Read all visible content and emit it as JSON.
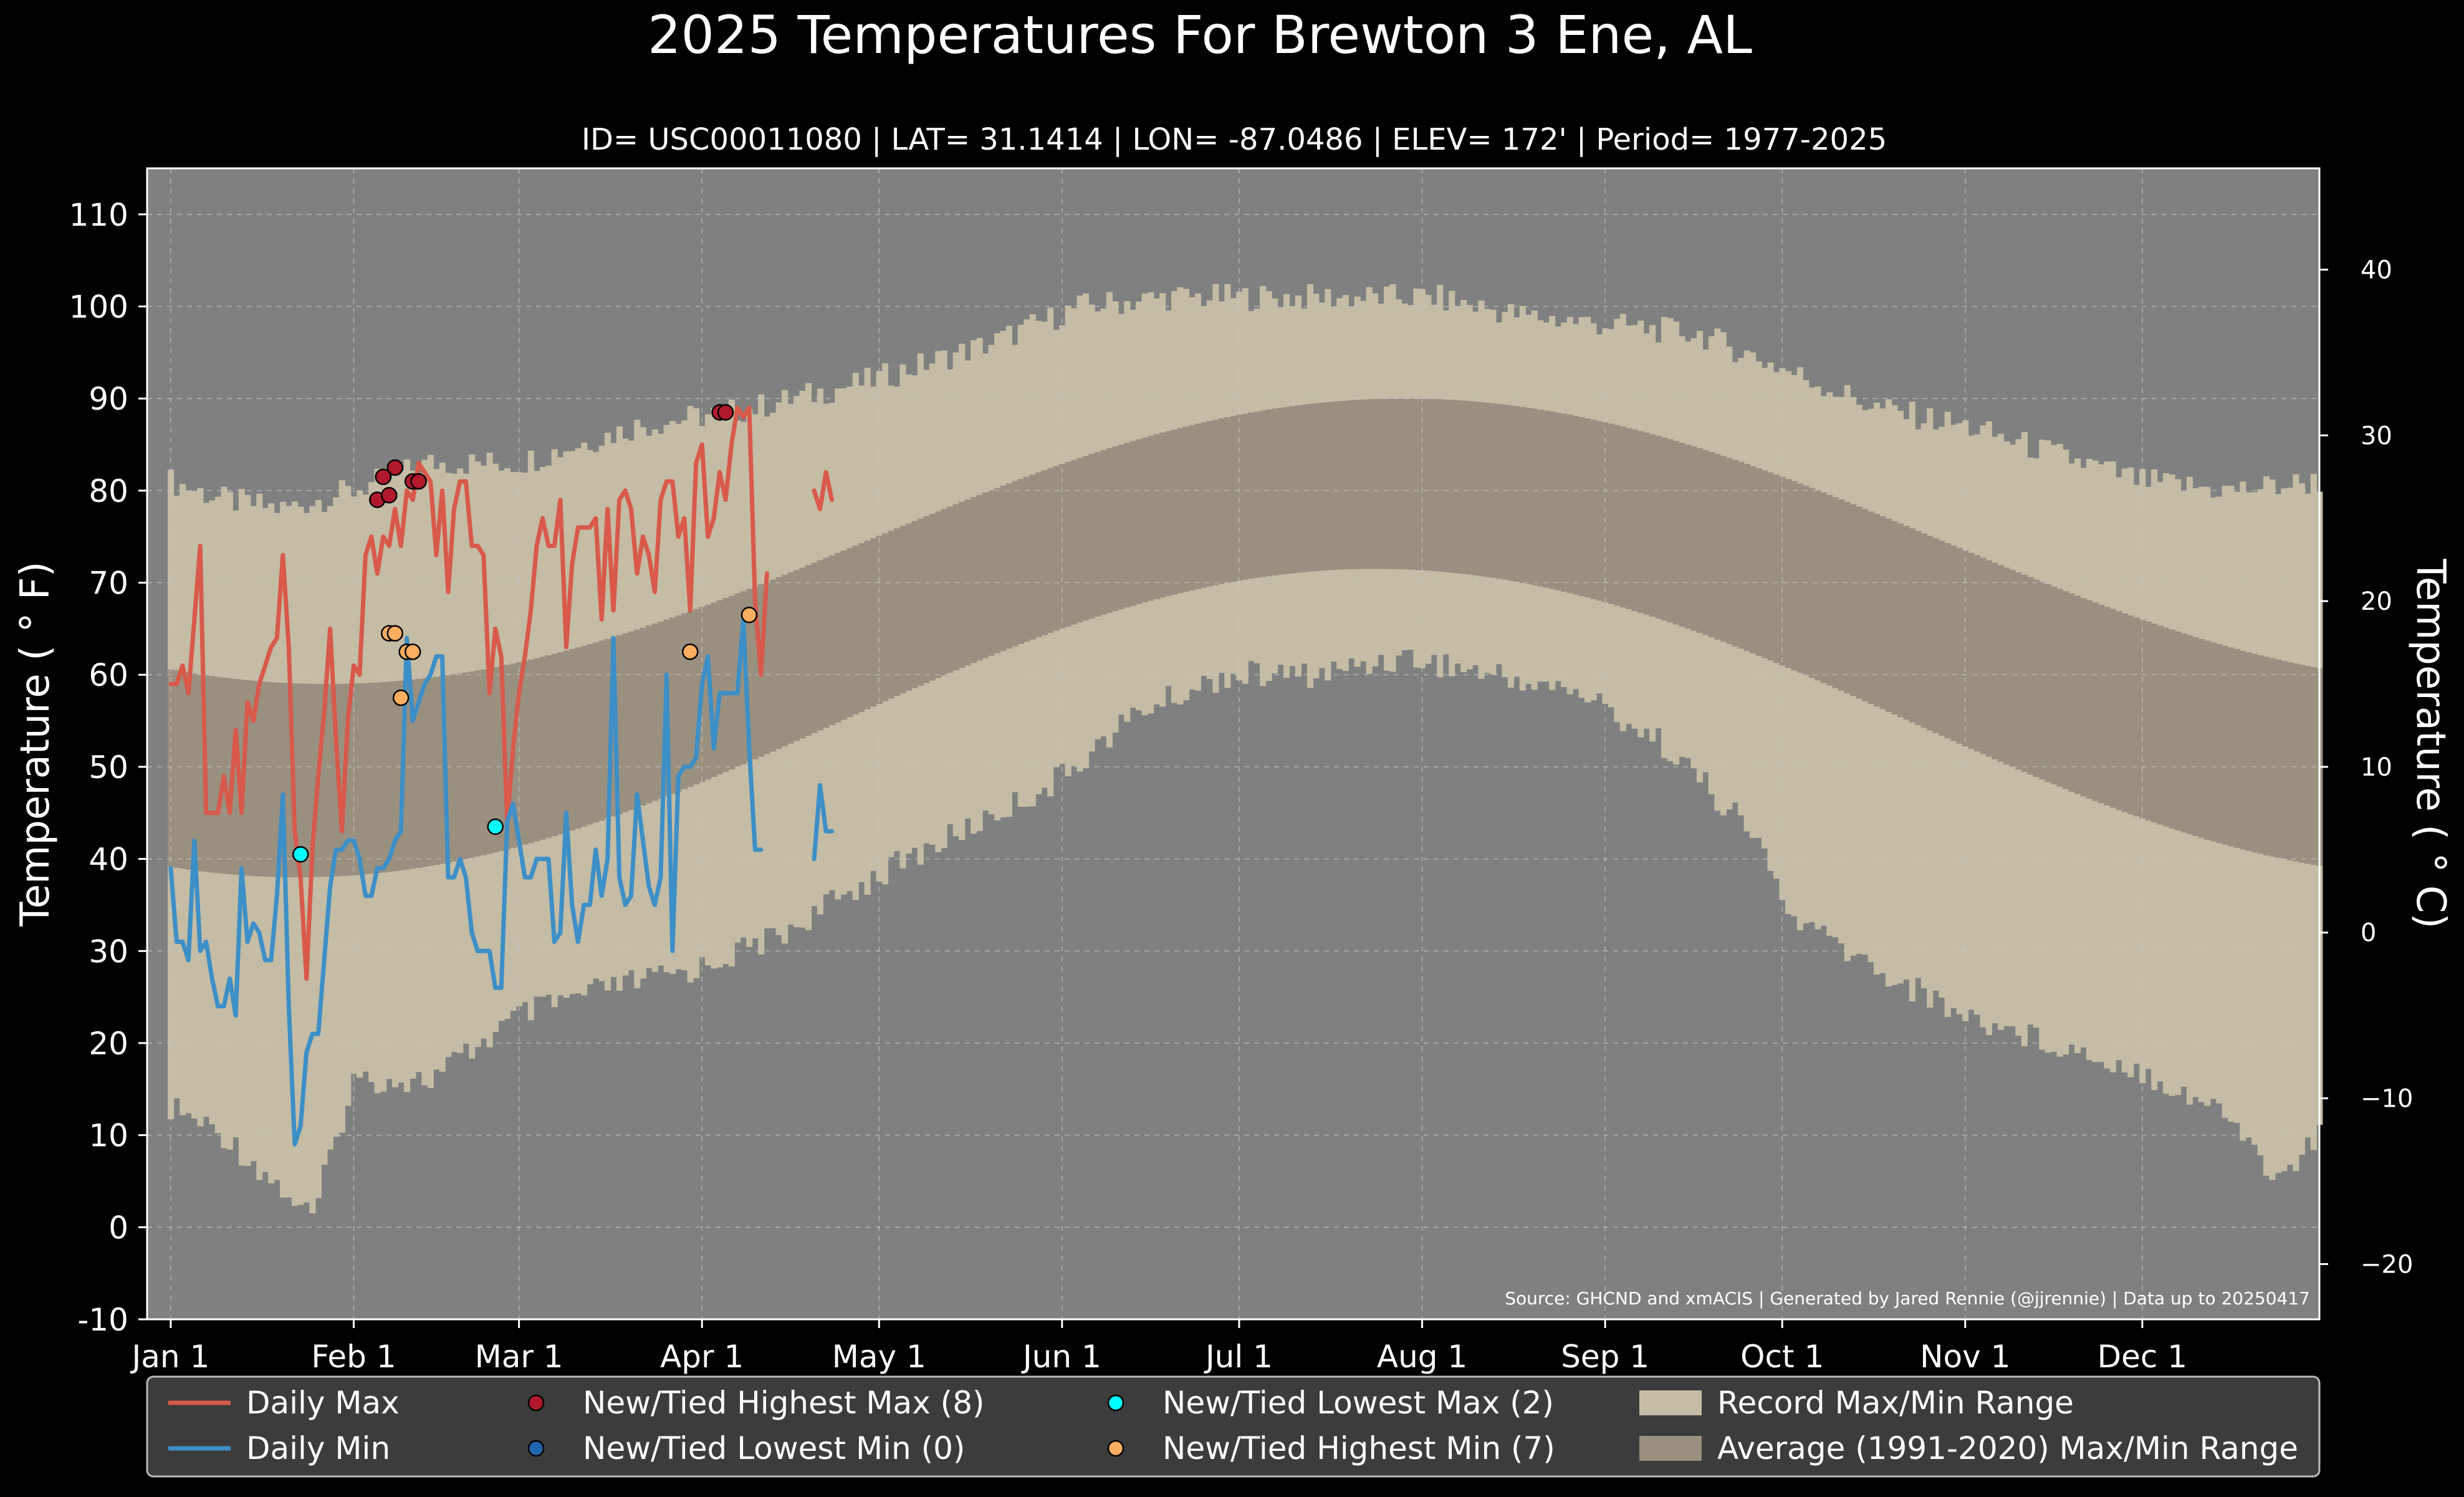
{
  "title": "2025 Temperatures For Brewton 3 Ene, AL",
  "subtitle": "ID= USC00011080 | LAT= 31.1414 | LON= -87.0486 | ELEV= 172' | Period= 1977-2025",
  "source_note": "Source: GHCND and xmACIS | Generated by Jared Rennie (@jjrennie) | Data up to 20250417",
  "colors": {
    "background": "#000000",
    "plot_bg": "#808080",
    "record_band": "#c4bca4",
    "normal_band": "#9a9080",
    "daily_max": "#d9594a",
    "daily_min": "#3d8fc7",
    "highest_max_marker": "#b2182b",
    "lowest_min_marker": "#2166ac",
    "lowest_max_marker": "#00ffff",
    "highest_min_marker": "#fdae61",
    "legend_bg": "#3c3c3c"
  },
  "chart_data": {
    "type": "line",
    "xlabel": "",
    "ylabel": "Temperature ( ° F)",
    "ylabel_right": "Temperature ( ° C)",
    "ylim": [
      -10,
      115
    ],
    "yticks": [
      -10,
      0,
      10,
      20,
      30,
      40,
      50,
      60,
      70,
      80,
      90,
      100,
      110
    ],
    "yticks_right_c": [
      -20,
      -10,
      0,
      10,
      20,
      30,
      40
    ],
    "xlim_day": [
      -3,
      365
    ],
    "xticks": [
      {
        "label": "Jan 1",
        "day": 1
      },
      {
        "label": "Feb 1",
        "day": 32
      },
      {
        "label": "Mar 1",
        "day": 60
      },
      {
        "label": "Apr 1",
        "day": 91
      },
      {
        "label": "May 1",
        "day": 121
      },
      {
        "label": "Jun 1",
        "day": 152
      },
      {
        "label": "Jul 1",
        "day": 182
      },
      {
        "label": "Aug 1",
        "day": 213
      },
      {
        "label": "Sep 1",
        "day": 244
      },
      {
        "label": "Oct 1",
        "day": 274
      },
      {
        "label": "Nov 1",
        "day": 305
      },
      {
        "label": "Dec 1",
        "day": 335
      }
    ],
    "grid": true,
    "normals": {
      "max_min": 59,
      "max_max": 90,
      "max_peak_day": 210,
      "min_min": 38,
      "min_max": 71.5,
      "min_peak_day": 205
    },
    "record_max_anchors": [
      [
        1,
        81
      ],
      [
        10,
        79
      ],
      [
        20,
        78
      ],
      [
        32,
        80
      ],
      [
        45,
        83
      ],
      [
        60,
        83
      ],
      [
        80,
        87
      ],
      [
        100,
        89
      ],
      [
        120,
        92
      ],
      [
        140,
        96
      ],
      [
        155,
        100
      ],
      [
        170,
        101
      ],
      [
        185,
        101
      ],
      [
        200,
        101
      ],
      [
        215,
        101
      ],
      [
        230,
        99
      ],
      [
        245,
        98
      ],
      [
        260,
        97
      ],
      [
        275,
        93
      ],
      [
        290,
        89
      ],
      [
        305,
        87
      ],
      [
        320,
        84
      ],
      [
        335,
        81
      ],
      [
        350,
        80
      ],
      [
        365,
        81
      ]
    ],
    "record_min_anchors": [
      [
        1,
        13
      ],
      [
        10,
        10
      ],
      [
        20,
        4
      ],
      [
        25,
        1
      ],
      [
        32,
        16
      ],
      [
        45,
        16
      ],
      [
        60,
        23
      ],
      [
        75,
        26
      ],
      [
        90,
        28
      ],
      [
        105,
        32
      ],
      [
        120,
        38
      ],
      [
        135,
        43
      ],
      [
        150,
        48
      ],
      [
        165,
        56
      ],
      [
        180,
        60
      ],
      [
        195,
        60
      ],
      [
        210,
        62
      ],
      [
        225,
        60
      ],
      [
        240,
        58
      ],
      [
        255,
        52
      ],
      [
        270,
        42
      ],
      [
        275,
        34
      ],
      [
        290,
        28
      ],
      [
        305,
        23
      ],
      [
        320,
        20
      ],
      [
        335,
        17
      ],
      [
        350,
        12
      ],
      [
        358,
        5
      ],
      [
        365,
        10
      ]
    ],
    "series": [
      {
        "name": "Daily Max",
        "start_day": 1,
        "values": [
          59,
          59,
          61,
          58,
          66,
          74,
          45,
          45,
          45,
          49,
          45,
          54,
          45,
          57,
          55,
          59,
          61,
          63,
          64,
          73,
          63,
          43,
          38,
          27,
          41,
          49,
          56,
          65,
          53,
          43,
          55,
          61,
          60,
          73,
          75,
          71,
          75,
          74,
          78,
          74,
          80,
          79,
          83,
          82,
          81,
          73,
          80,
          69,
          78,
          81,
          81,
          74,
          74,
          73,
          58,
          65,
          62,
          44,
          52,
          58,
          62,
          67,
          74,
          77,
          74,
          74,
          79,
          63,
          72,
          76,
          76,
          76,
          77,
          66,
          78,
          67,
          79,
          80,
          78,
          71,
          75,
          73,
          69,
          79,
          81,
          81,
          75,
          77,
          67,
          83,
          85,
          75,
          77,
          82,
          79,
          85,
          89,
          88,
          89,
          68,
          60,
          71,
          null,
          null,
          null,
          null,
          null,
          null,
          null,
          80,
          78,
          82,
          79
        ],
        "color_key": "daily_max"
      },
      {
        "name": "Daily Min",
        "start_day": 1,
        "values": [
          39,
          31,
          31,
          29,
          42,
          30,
          31,
          27,
          24,
          24,
          27,
          23,
          39,
          31,
          33,
          32,
          29,
          29,
          36,
          47,
          24,
          9,
          11,
          19,
          21,
          21,
          29,
          37,
          41,
          41,
          42,
          42,
          40,
          36,
          36,
          39,
          39,
          40,
          42,
          43,
          64,
          55,
          57,
          59,
          60,
          62,
          62,
          38,
          38,
          40,
          38,
          32,
          30,
          30,
          30,
          26,
          26,
          44,
          46,
          42,
          38,
          38,
          40,
          40,
          40,
          31,
          32,
          45,
          35,
          31,
          35,
          35,
          41,
          36,
          40,
          64,
          38,
          35,
          36,
          47,
          42,
          37,
          35,
          38,
          60,
          30,
          49,
          50,
          50,
          51,
          59,
          62,
          52,
          58,
          58,
          58,
          58,
          66,
          52,
          41,
          41,
          null,
          null,
          null,
          null,
          null,
          null,
          null,
          null,
          40,
          48,
          43,
          43
        ],
        "color_key": "daily_min"
      }
    ],
    "record_events": {
      "new_tied_highest_max": [
        [
          36,
          79
        ],
        [
          37,
          81.5
        ],
        [
          38,
          79.5
        ],
        [
          39,
          82.5
        ],
        [
          42,
          81
        ],
        [
          43,
          81
        ],
        [
          94,
          88.5
        ],
        [
          95,
          88.5
        ]
      ],
      "new_tied_lowest_min": [],
      "new_tied_lowest_max": [
        [
          23,
          40.5
        ],
        [
          56,
          43.5
        ]
      ],
      "new_tied_highest_min": [
        [
          38,
          64.5
        ],
        [
          39,
          64.5
        ],
        [
          40,
          57.5
        ],
        [
          41,
          62.5
        ],
        [
          42,
          62.5
        ],
        [
          89,
          62.5
        ],
        [
          99,
          66.5
        ]
      ]
    },
    "legend": [
      {
        "label": "Daily Max",
        "kind": "line",
        "color_key": "daily_max"
      },
      {
        "label": "Daily Min",
        "kind": "line",
        "color_key": "daily_min"
      },
      {
        "label": "New/Tied Highest Max (8)",
        "kind": "dot",
        "color_key": "highest_max_marker"
      },
      {
        "label": "New/Tied Lowest Min (0)",
        "kind": "dot",
        "color_key": "lowest_min_marker"
      },
      {
        "label": "New/Tied Lowest Max (2)",
        "kind": "dot",
        "color_key": "lowest_max_marker"
      },
      {
        "label": "New/Tied Highest Min (7)",
        "kind": "dot",
        "color_key": "highest_min_marker"
      },
      {
        "label": "Record Max/Min Range",
        "kind": "patch",
        "color_key": "record_band"
      },
      {
        "label": "Average (1991-2020) Max/Min Range",
        "kind": "patch",
        "color_key": "normal_band"
      }
    ],
    "legend_position": "below"
  }
}
